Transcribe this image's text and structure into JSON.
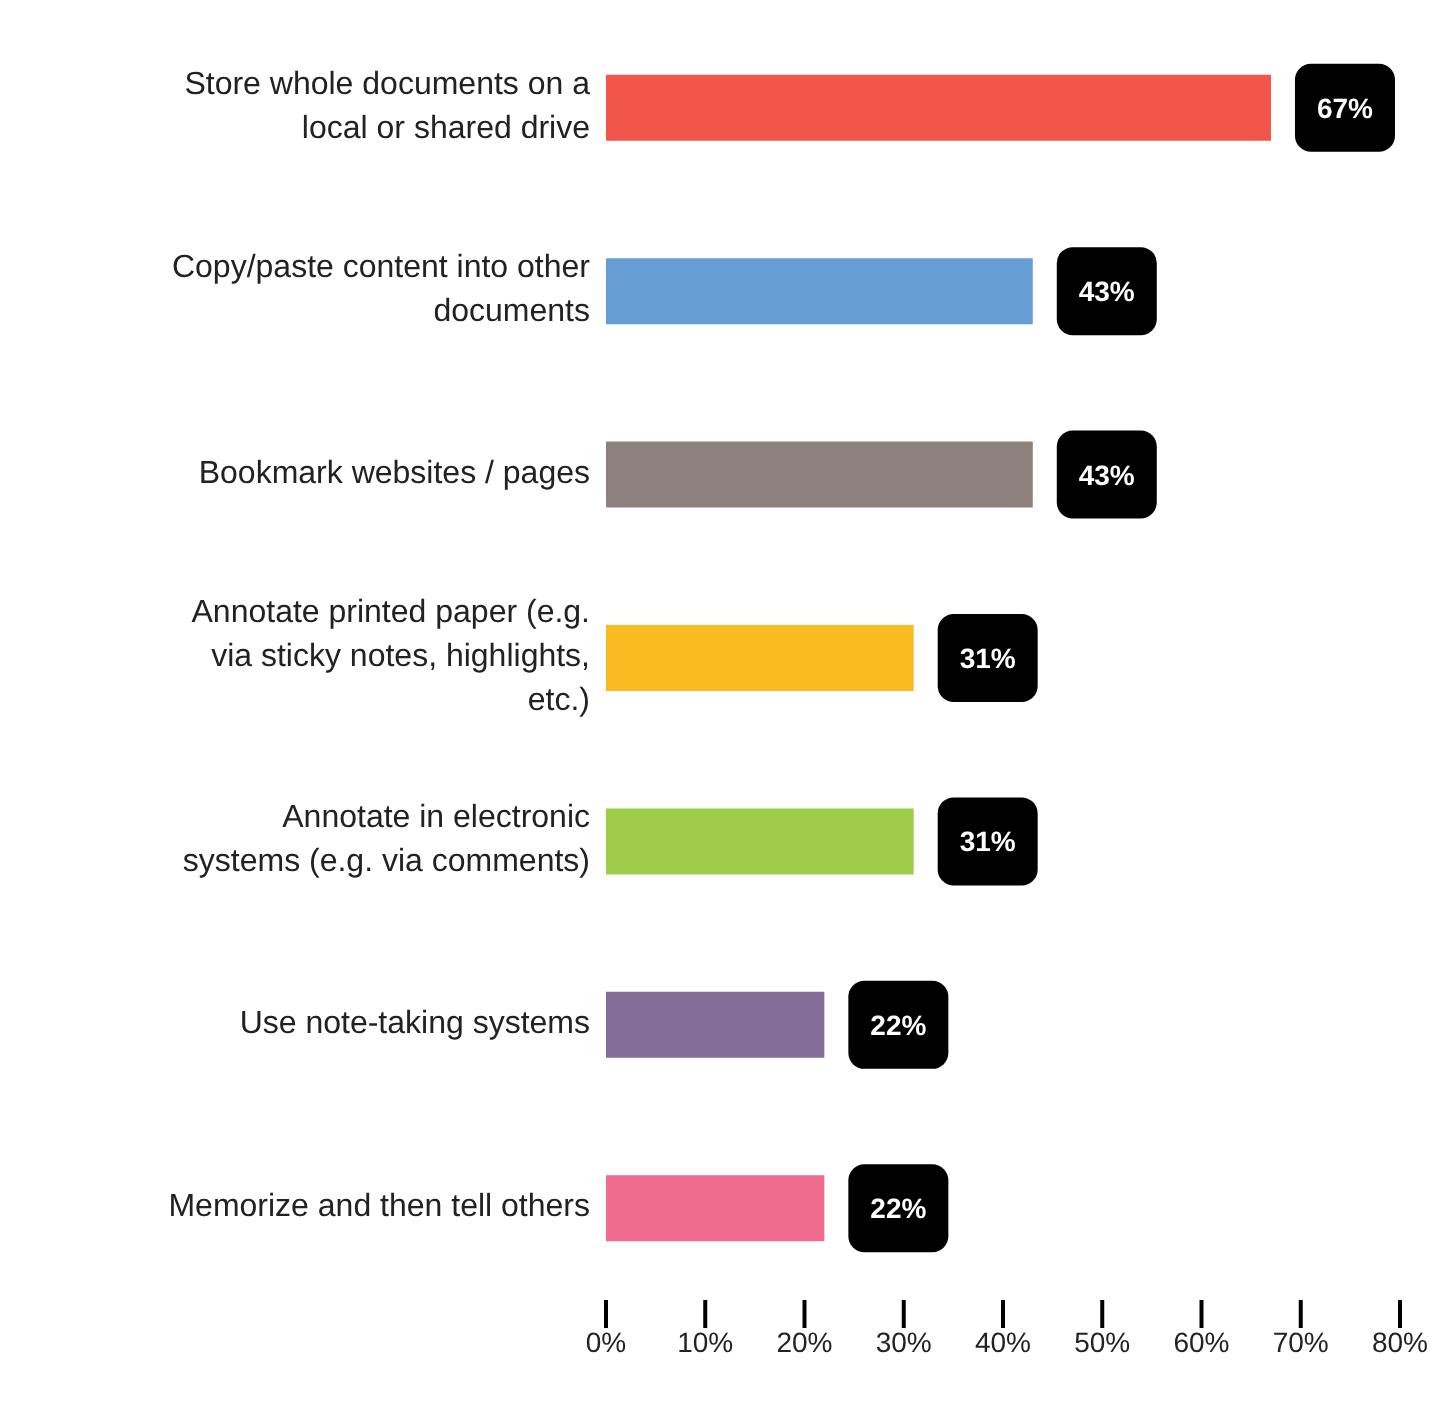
{
  "chart_data": {
    "type": "bar",
    "orientation": "horizontal",
    "categories": [
      "Store whole documents on a local or shared drive",
      "Copy/paste content into other documents",
      "Bookmark websites / pages",
      "Annotate printed paper (e.g. via sticky notes, highlights, etc.)",
      "Annotate in electronic systems (e.g. via comments)",
      "Use note-taking systems",
      "Memorize and then tell others"
    ],
    "values": [
      67,
      43,
      43,
      31,
      31,
      22,
      22
    ],
    "colors": [
      "#f2564b",
      "#669dd3",
      "#8c817d",
      "#f9bb1f",
      "#9dcd49",
      "#846c99",
      "#f06c8f"
    ],
    "value_labels": [
      "67%",
      "43%",
      "43%",
      "31%",
      "31%",
      "22%",
      "22%"
    ],
    "xlim": [
      0,
      80
    ],
    "xticks": [
      {
        "value": 0,
        "label": "0%"
      },
      {
        "value": 10,
        "label": "10%"
      },
      {
        "value": 20,
        "label": "20%"
      },
      {
        "value": 30,
        "label": "30%"
      },
      {
        "value": 40,
        "label": "40%"
      },
      {
        "value": 50,
        "label": "50%"
      },
      {
        "value": 60,
        "label": "60%"
      },
      {
        "value": 70,
        "label": "70%"
      },
      {
        "value": 80,
        "label": "80%"
      }
    ]
  }
}
